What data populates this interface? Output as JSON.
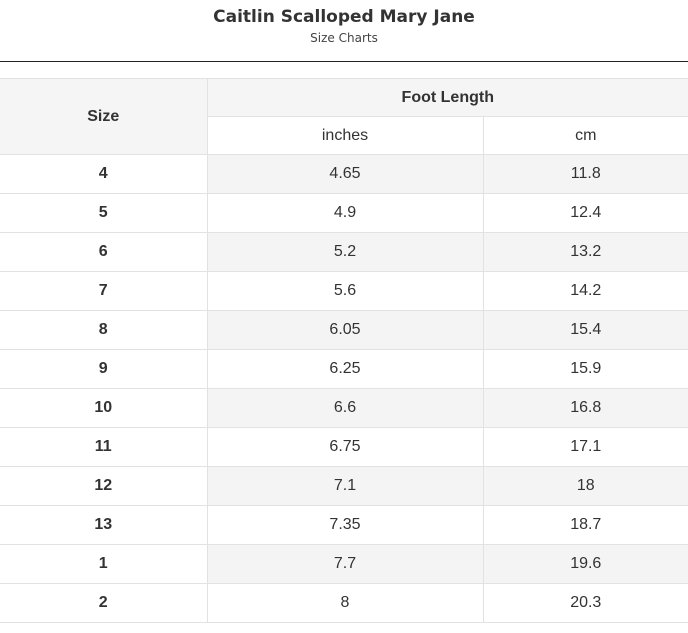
{
  "header": {
    "title": "Caitlin Scalloped Mary Jane",
    "subtitle": "Size Charts"
  },
  "table": {
    "size_header": "Size",
    "group_header": "Foot Length",
    "unit_headers": [
      "inches",
      "cm"
    ],
    "rows": [
      {
        "size": "4",
        "inches": "4.65",
        "cm": "11.8"
      },
      {
        "size": "5",
        "inches": "4.9",
        "cm": "12.4"
      },
      {
        "size": "6",
        "inches": "5.2",
        "cm": "13.2"
      },
      {
        "size": "7",
        "inches": "5.6",
        "cm": "14.2"
      },
      {
        "size": "8",
        "inches": "6.05",
        "cm": "15.4"
      },
      {
        "size": "9",
        "inches": "6.25",
        "cm": "15.9"
      },
      {
        "size": "10",
        "inches": "6.6",
        "cm": "16.8"
      },
      {
        "size": "11",
        "inches": "6.75",
        "cm": "17.1"
      },
      {
        "size": "12",
        "inches": "7.1",
        "cm": "18"
      },
      {
        "size": "13",
        "inches": "7.35",
        "cm": "18.7"
      },
      {
        "size": "1",
        "inches": "7.7",
        "cm": "19.6"
      },
      {
        "size": "2",
        "inches": "8",
        "cm": "20.3"
      }
    ]
  }
}
